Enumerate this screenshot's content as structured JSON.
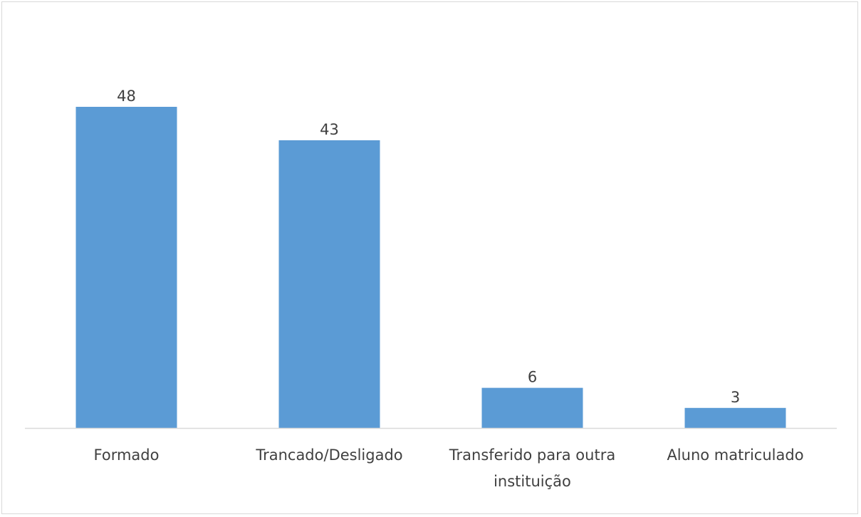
{
  "chart_data": {
    "type": "bar",
    "title": "",
    "xlabel": "",
    "ylabel": "",
    "categories": [
      [
        "Formado"
      ],
      [
        "Trancado/Desligado"
      ],
      [
        "Transferido para outra",
        "instituição"
      ],
      [
        "Aluno matriculado"
      ]
    ],
    "values": [
      48,
      43,
      6,
      3
    ],
    "ylim": [
      0,
      55
    ],
    "grid": false,
    "legend": "none",
    "bar_color": "#5b9bd5",
    "axis_color": "#d9d9d9",
    "text_color": "#404040"
  }
}
